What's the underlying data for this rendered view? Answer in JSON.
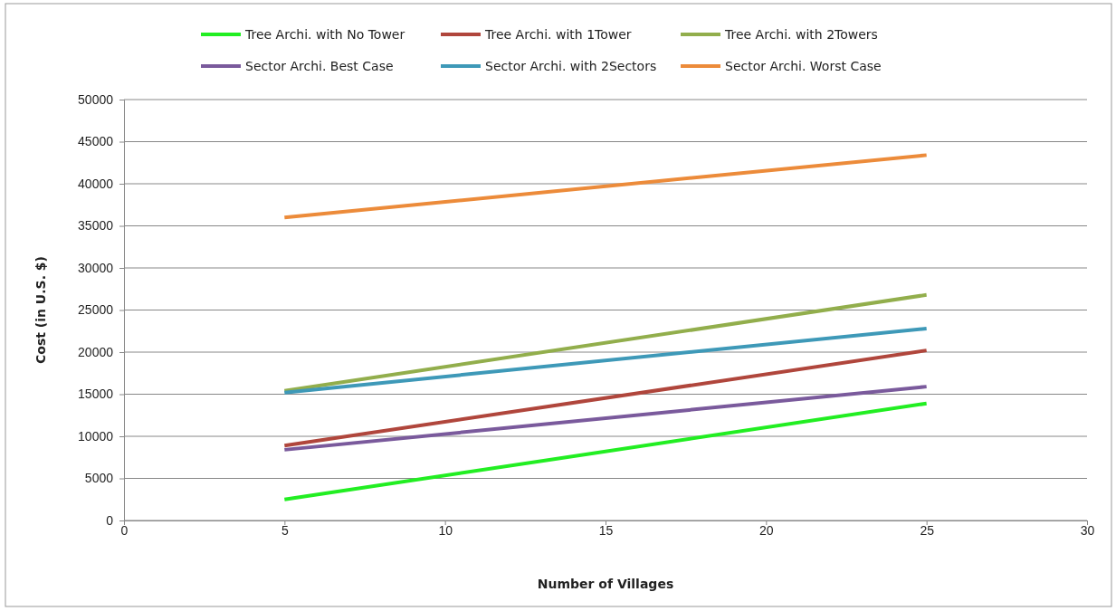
{
  "chart_data": {
    "type": "line",
    "xlabel": "Number of Villages",
    "ylabel": "Cost (in U.S. $)",
    "xlim": [
      0,
      30
    ],
    "xticks": [
      0,
      5,
      10,
      15,
      20,
      25,
      30
    ],
    "ylim": [
      0,
      50000
    ],
    "yticks": [
      0,
      5000,
      10000,
      15000,
      20000,
      25000,
      30000,
      35000,
      40000,
      45000,
      50000
    ],
    "grid": "y",
    "legend": "top",
    "marker": "none",
    "line_style": "solid",
    "x": [
      5,
      25
    ],
    "series": [
      {
        "name": "Tree Archi. with No Tower",
        "color": "#22ee22",
        "values": [
          2500,
          13900
        ]
      },
      {
        "name": "Tree Archi. with 1Tower",
        "color": "#b0463c",
        "values": [
          8900,
          20200
        ]
      },
      {
        "name": "Tree Archi. with 2Towers",
        "color": "#92ae4c",
        "values": [
          15400,
          26800
        ]
      },
      {
        "name": "Sector Archi. Best Case",
        "color": "#7a5a9c",
        "values": [
          8400,
          15900
        ]
      },
      {
        "name": "Sector Archi. with 2Sectors",
        "color": "#3e99b8",
        "values": [
          15200,
          22800
        ]
      },
      {
        "name": "Sector Archi. Worst Case",
        "color": "#ec8b3a",
        "values": [
          36000,
          43400
        ]
      }
    ]
  }
}
